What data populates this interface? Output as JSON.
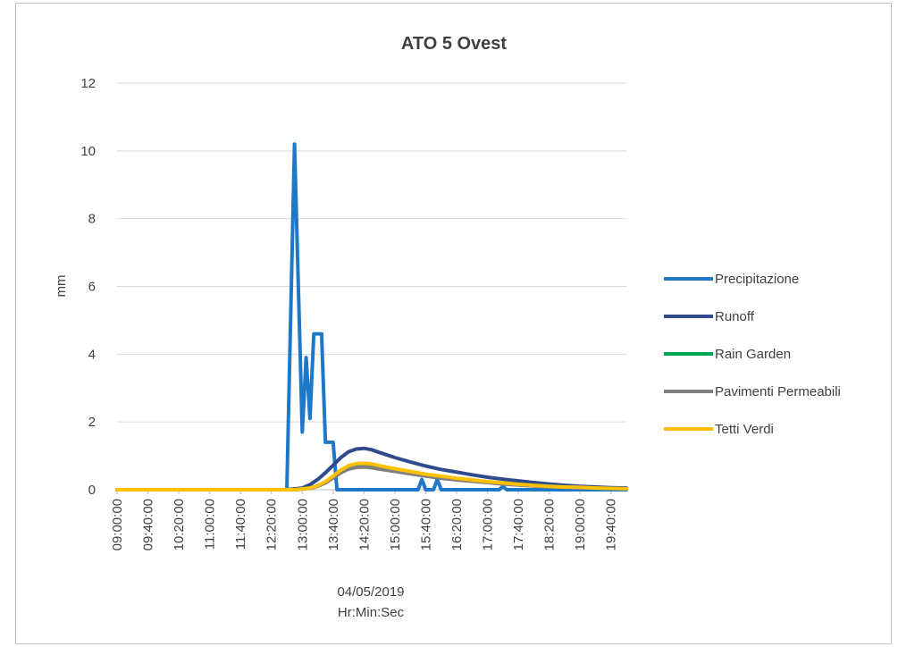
{
  "chart_data": {
    "type": "line",
    "title": "ATO 5 Ovest",
    "ylabel": "mm",
    "xlabel": [
      "04/05/2019",
      "Hr:Min:Sec"
    ],
    "ylim": [
      0,
      12
    ],
    "yticks": [
      0,
      2,
      4,
      6,
      8,
      10,
      12
    ],
    "xlim": [
      "09:00:00",
      "20:00:00"
    ],
    "xtick_labels": [
      "09:00:00",
      "09:40:00",
      "10:20:00",
      "11:00:00",
      "11:40:00",
      "12:20:00",
      "13:00:00",
      "13:40:00",
      "14:20:00",
      "15:00:00",
      "15:40:00",
      "16:20:00",
      "17:00:00",
      "17:40:00",
      "18:20:00",
      "19:00:00",
      "19:40:00"
    ],
    "grid": true,
    "legend_position": "right",
    "series": [
      {
        "name": "Precipitazione",
        "color": "#1f77c8",
        "points": [
          [
            "09:00:00",
            0
          ],
          [
            "12:40:00",
            0
          ],
          [
            "12:50:00",
            10.2
          ],
          [
            "13:00:00",
            1.7
          ],
          [
            "13:05:00",
            3.9
          ],
          [
            "13:10:00",
            2.1
          ],
          [
            "13:15:00",
            4.6
          ],
          [
            "13:25:00",
            4.6
          ],
          [
            "13:30:00",
            1.4
          ],
          [
            "13:40:00",
            1.4
          ],
          [
            "13:45:00",
            0
          ],
          [
            "15:30:00",
            0
          ],
          [
            "15:35:00",
            0.3
          ],
          [
            "15:40:00",
            0
          ],
          [
            "15:50:00",
            0
          ],
          [
            "15:55:00",
            0.3
          ],
          [
            "16:00:00",
            0
          ],
          [
            "17:15:00",
            0
          ],
          [
            "17:20:00",
            0.1
          ],
          [
            "17:25:00",
            0
          ],
          [
            "20:00:00",
            0
          ]
        ]
      },
      {
        "name": "Runoff",
        "color": "#2f4b8c",
        "points": [
          [
            "09:00:00",
            0
          ],
          [
            "12:40:00",
            0
          ],
          [
            "13:00:00",
            0.05
          ],
          [
            "13:10:00",
            0.15
          ],
          [
            "13:20:00",
            0.3
          ],
          [
            "13:30:00",
            0.5
          ],
          [
            "13:40:00",
            0.72
          ],
          [
            "13:50:00",
            0.95
          ],
          [
            "14:00:00",
            1.12
          ],
          [
            "14:10:00",
            1.2
          ],
          [
            "14:20:00",
            1.22
          ],
          [
            "14:30:00",
            1.18
          ],
          [
            "14:40:00",
            1.1
          ],
          [
            "15:00:00",
            0.95
          ],
          [
            "15:20:00",
            0.82
          ],
          [
            "15:40:00",
            0.7
          ],
          [
            "16:00:00",
            0.6
          ],
          [
            "16:20:00",
            0.52
          ],
          [
            "16:40:00",
            0.44
          ],
          [
            "17:00:00",
            0.37
          ],
          [
            "17:20:00",
            0.31
          ],
          [
            "17:40:00",
            0.26
          ],
          [
            "18:00:00",
            0.21
          ],
          [
            "18:20:00",
            0.17
          ],
          [
            "18:40:00",
            0.13
          ],
          [
            "19:00:00",
            0.1
          ],
          [
            "19:20:00",
            0.08
          ],
          [
            "19:40:00",
            0.06
          ],
          [
            "20:00:00",
            0.05
          ]
        ]
      },
      {
        "name": "Rain Garden",
        "color": "#00a651",
        "points": [
          [
            "09:00:00",
            0
          ],
          [
            "12:50:00",
            0
          ],
          [
            "13:10:00",
            0.05
          ],
          [
            "13:20:00",
            0.12
          ],
          [
            "13:30:00",
            0.22
          ],
          [
            "13:40:00",
            0.38
          ],
          [
            "13:50:00",
            0.55
          ],
          [
            "14:00:00",
            0.66
          ],
          [
            "14:10:00",
            0.72
          ],
          [
            "14:20:00",
            0.73
          ],
          [
            "14:30:00",
            0.7
          ],
          [
            "14:40:00",
            0.66
          ],
          [
            "15:00:00",
            0.58
          ],
          [
            "15:20:00",
            0.5
          ],
          [
            "15:40:00",
            0.43
          ],
          [
            "16:00:00",
            0.37
          ],
          [
            "16:20:00",
            0.32
          ],
          [
            "16:40:00",
            0.27
          ],
          [
            "17:00:00",
            0.22
          ],
          [
            "17:20:00",
            0.18
          ],
          [
            "17:40:00",
            0.15
          ],
          [
            "18:00:00",
            0.12
          ],
          [
            "18:20:00",
            0.1
          ],
          [
            "18:40:00",
            0.08
          ],
          [
            "19:00:00",
            0.06
          ],
          [
            "19:20:00",
            0.05
          ],
          [
            "19:40:00",
            0.04
          ],
          [
            "20:00:00",
            0.03
          ]
        ]
      },
      {
        "name": "Pavimenti Permeabili",
        "color": "#7f7f7f",
        "points": [
          [
            "09:00:00",
            0
          ],
          [
            "12:50:00",
            0
          ],
          [
            "13:10:00",
            0.04
          ],
          [
            "13:20:00",
            0.1
          ],
          [
            "13:30:00",
            0.2
          ],
          [
            "13:40:00",
            0.35
          ],
          [
            "13:50:00",
            0.5
          ],
          [
            "14:00:00",
            0.61
          ],
          [
            "14:10:00",
            0.66
          ],
          [
            "14:20:00",
            0.67
          ],
          [
            "14:30:00",
            0.65
          ],
          [
            "14:40:00",
            0.61
          ],
          [
            "15:00:00",
            0.54
          ],
          [
            "15:20:00",
            0.47
          ],
          [
            "15:40:00",
            0.4
          ],
          [
            "16:00:00",
            0.34
          ],
          [
            "16:20:00",
            0.29
          ],
          [
            "16:40:00",
            0.25
          ],
          [
            "17:00:00",
            0.21
          ],
          [
            "17:20:00",
            0.17
          ],
          [
            "17:40:00",
            0.14
          ],
          [
            "18:00:00",
            0.11
          ],
          [
            "18:20:00",
            0.09
          ],
          [
            "18:40:00",
            0.07
          ],
          [
            "19:00:00",
            0.06
          ],
          [
            "19:20:00",
            0.05
          ],
          [
            "19:40:00",
            0.04
          ],
          [
            "20:00:00",
            0.03
          ]
        ]
      },
      {
        "name": "Tetti Verdi",
        "color": "#ffc000",
        "points": [
          [
            "09:00:00",
            0
          ],
          [
            "12:50:00",
            0
          ],
          [
            "13:10:00",
            0.05
          ],
          [
            "13:20:00",
            0.12
          ],
          [
            "13:30:00",
            0.24
          ],
          [
            "13:40:00",
            0.4
          ],
          [
            "13:50:00",
            0.58
          ],
          [
            "14:00:00",
            0.71
          ],
          [
            "14:10:00",
            0.77
          ],
          [
            "14:20:00",
            0.78
          ],
          [
            "14:30:00",
            0.76
          ],
          [
            "14:40:00",
            0.71
          ],
          [
            "15:00:00",
            0.62
          ],
          [
            "15:20:00",
            0.54
          ],
          [
            "15:40:00",
            0.46
          ],
          [
            "16:00:00",
            0.4
          ],
          [
            "16:20:00",
            0.34
          ],
          [
            "16:40:00",
            0.29
          ],
          [
            "17:00:00",
            0.24
          ],
          [
            "17:20:00",
            0.2
          ],
          [
            "17:40:00",
            0.16
          ],
          [
            "18:00:00",
            0.13
          ],
          [
            "18:20:00",
            0.1
          ],
          [
            "18:40:00",
            0.08
          ],
          [
            "19:00:00",
            0.07
          ],
          [
            "19:20:00",
            0.05
          ],
          [
            "19:40:00",
            0.04
          ],
          [
            "20:00:00",
            0.03
          ]
        ]
      }
    ]
  }
}
